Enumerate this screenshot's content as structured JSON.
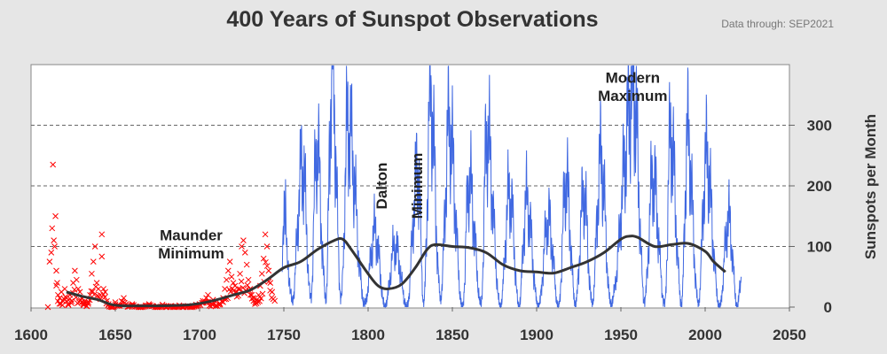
{
  "title": "400 Years of Sunspot Observations",
  "subtitle": "Data through:  SEP2021",
  "chart_data": {
    "type": "line",
    "title": "400 Years of Sunspot Observations",
    "xlabel": "",
    "ylabel": "Sunspots per Month",
    "xlim": [
      1600,
      2050
    ],
    "ylim": [
      0,
      400
    ],
    "x_ticks": [
      "1600",
      "1650",
      "1700",
      "1750",
      "1800",
      "1850",
      "1900",
      "1950",
      "2000",
      "2050"
    ],
    "y_ticks": [
      "0",
      "100",
      "200",
      "300"
    ],
    "grid": "horizontal dashed",
    "series": [
      {
        "kind": "scatter",
        "color": "#ff0000",
        "marker": "x",
        "points": [
          [
            1610,
            0
          ],
          [
            1611,
            75
          ],
          [
            1612,
            90
          ],
          [
            1612.5,
            130
          ],
          [
            1613,
            235
          ],
          [
            1613.5,
            110
          ],
          [
            1614,
            100
          ],
          [
            1614.5,
            150
          ],
          [
            1615,
            60
          ],
          [
            1615.5,
            40
          ],
          [
            1616,
            20
          ],
          [
            1617,
            15
          ],
          [
            1618,
            25
          ],
          [
            1619,
            10
          ],
          [
            1620,
            30
          ],
          [
            1621,
            15
          ],
          [
            1622,
            5
          ],
          [
            1623,
            20
          ],
          [
            1624,
            10
          ],
          [
            1625,
            40
          ],
          [
            1626,
            60
          ],
          [
            1627,
            45
          ],
          [
            1628,
            30
          ],
          [
            1629,
            25
          ],
          [
            1630,
            15
          ],
          [
            1631,
            5
          ],
          [
            1632,
            10
          ],
          [
            1633,
            2
          ],
          [
            1634,
            8
          ],
          [
            1635,
            20
          ],
          [
            1636,
            55
          ],
          [
            1637,
            75
          ],
          [
            1638,
            100
          ],
          [
            1639,
            40
          ],
          [
            1640,
            30
          ],
          [
            1641,
            20
          ],
          [
            1642,
            120
          ],
          [
            1643,
            30
          ],
          [
            1644,
            25
          ],
          [
            1645,
            10
          ],
          [
            1646,
            5
          ],
          [
            1647,
            2
          ],
          [
            1648,
            0
          ],
          [
            1649,
            1
          ],
          [
            1650,
            8
          ],
          [
            1652,
            3
          ],
          [
            1655,
            15
          ],
          [
            1658,
            2
          ],
          [
            1660,
            5
          ],
          [
            1662,
            1
          ],
          [
            1665,
            0
          ],
          [
            1668,
            3
          ],
          [
            1670,
            5
          ],
          [
            1672,
            2
          ],
          [
            1675,
            0
          ],
          [
            1678,
            4
          ],
          [
            1680,
            0
          ],
          [
            1683,
            2
          ],
          [
            1685,
            0
          ],
          [
            1688,
            3
          ],
          [
            1690,
            0
          ],
          [
            1693,
            2
          ],
          [
            1695,
            0
          ],
          [
            1698,
            4
          ],
          [
            1700,
            5
          ],
          [
            1702,
            10
          ],
          [
            1704,
            15
          ],
          [
            1705,
            20
          ],
          [
            1706,
            8
          ],
          [
            1707,
            5
          ],
          [
            1708,
            12
          ],
          [
            1710,
            3
          ],
          [
            1712,
            6
          ],
          [
            1714,
            15
          ],
          [
            1715,
            30
          ],
          [
            1716,
            45
          ],
          [
            1717,
            60
          ],
          [
            1718,
            75
          ],
          [
            1719,
            50
          ],
          [
            1720,
            40
          ],
          [
            1721,
            35
          ],
          [
            1722,
            25
          ],
          [
            1723,
            30
          ],
          [
            1724,
            55
          ],
          [
            1725,
            100
          ],
          [
            1726,
            110
          ],
          [
            1727,
            90
          ],
          [
            1728,
            70
          ],
          [
            1729,
            45
          ],
          [
            1730,
            30
          ],
          [
            1731,
            20
          ],
          [
            1732,
            15
          ],
          [
            1733,
            8
          ],
          [
            1734,
            12
          ],
          [
            1735,
            20
          ],
          [
            1736,
            35
          ],
          [
            1737,
            55
          ],
          [
            1738,
            80
          ],
          [
            1739,
            120
          ],
          [
            1740,
            100
          ],
          [
            1741,
            60
          ],
          [
            1742,
            40
          ],
          [
            1743,
            25
          ]
        ]
      },
      {
        "kind": "line",
        "color": "#4169e1",
        "anchors": [
          [
            1749,
            60
          ],
          [
            1750.5,
            210
          ],
          [
            1752,
            70
          ],
          [
            1755,
            10
          ],
          [
            1761,
            240
          ],
          [
            1766,
            15
          ],
          [
            1769.5,
            265
          ],
          [
            1775,
            15
          ],
          [
            1778.5,
            395
          ],
          [
            1784,
            15
          ],
          [
            1788,
            305
          ],
          [
            1798,
            5
          ],
          [
            1804,
            125
          ],
          [
            1810,
            0
          ],
          [
            1816,
            100
          ],
          [
            1823,
            0
          ],
          [
            1829.5,
            230
          ],
          [
            1833,
            5
          ],
          [
            1837,
            345
          ],
          [
            1843,
            15
          ],
          [
            1848,
            300
          ],
          [
            1856,
            0
          ],
          [
            1860,
            210
          ],
          [
            1867,
            5
          ],
          [
            1870.5,
            285
          ],
          [
            1878.5,
            0
          ],
          [
            1884,
            190
          ],
          [
            1889.5,
            0
          ],
          [
            1894,
            175
          ],
          [
            1901,
            0
          ],
          [
            1907,
            145
          ],
          [
            1913,
            0
          ],
          [
            1917.5,
            210
          ],
          [
            1923,
            5
          ],
          [
            1928,
            185
          ],
          [
            1933,
            5
          ],
          [
            1938,
            245
          ],
          [
            1944,
            5
          ],
          [
            1957.5,
            360
          ],
          [
            1964,
            10
          ],
          [
            1969,
            215
          ],
          [
            1976,
            5
          ],
          [
            1979.5,
            285
          ],
          [
            1986,
            5
          ],
          [
            1989.5,
            280
          ],
          [
            1996,
            5
          ],
          [
            2000.5,
            245
          ],
          [
            2008.5,
            0
          ],
          [
            2014,
            145
          ],
          [
            2019,
            0
          ],
          [
            2021.5,
            50
          ]
        ]
      },
      {
        "kind": "smoothed-line",
        "color": "#333333",
        "points": [
          [
            1621,
            25
          ],
          [
            1630,
            18
          ],
          [
            1640,
            12
          ],
          [
            1650,
            3
          ],
          [
            1670,
            2
          ],
          [
            1690,
            3
          ],
          [
            1700,
            6
          ],
          [
            1710,
            12
          ],
          [
            1720,
            20
          ],
          [
            1730,
            28
          ],
          [
            1740,
            45
          ],
          [
            1750,
            65
          ],
          [
            1760,
            75
          ],
          [
            1770,
            95
          ],
          [
            1780,
            110
          ],
          [
            1785,
            112
          ],
          [
            1790,
            95
          ],
          [
            1800,
            55
          ],
          [
            1806,
            35
          ],
          [
            1812,
            30
          ],
          [
            1820,
            38
          ],
          [
            1828,
            65
          ],
          [
            1835,
            95
          ],
          [
            1840,
            103
          ],
          [
            1850,
            100
          ],
          [
            1860,
            98
          ],
          [
            1870,
            90
          ],
          [
            1880,
            70
          ],
          [
            1890,
            60
          ],
          [
            1900,
            58
          ],
          [
            1910,
            56
          ],
          [
            1920,
            65
          ],
          [
            1930,
            75
          ],
          [
            1940,
            90
          ],
          [
            1950,
            112
          ],
          [
            1955,
            117
          ],
          [
            1960,
            115
          ],
          [
            1970,
            100
          ],
          [
            1980,
            103
          ],
          [
            1990,
            105
          ],
          [
            2000,
            92
          ],
          [
            2005,
            75
          ],
          [
            2012,
            58
          ]
        ]
      }
    ],
    "annotations": [
      {
        "text": "Maunder",
        "x": 1695,
        "y": 110,
        "rotate": false
      },
      {
        "text": "Minimum",
        "x": 1695,
        "y": 80,
        "rotate": false
      },
      {
        "text": "Dalton",
        "x": 1811,
        "y": 200,
        "rotate": true
      },
      {
        "text": "Minimum",
        "x": 1832,
        "y": 200,
        "rotate": true
      },
      {
        "text": "Modern",
        "x": 1957,
        "y": 370,
        "rotate": false
      },
      {
        "text": "Maximum",
        "x": 1957,
        "y": 340,
        "rotate": false
      }
    ]
  }
}
